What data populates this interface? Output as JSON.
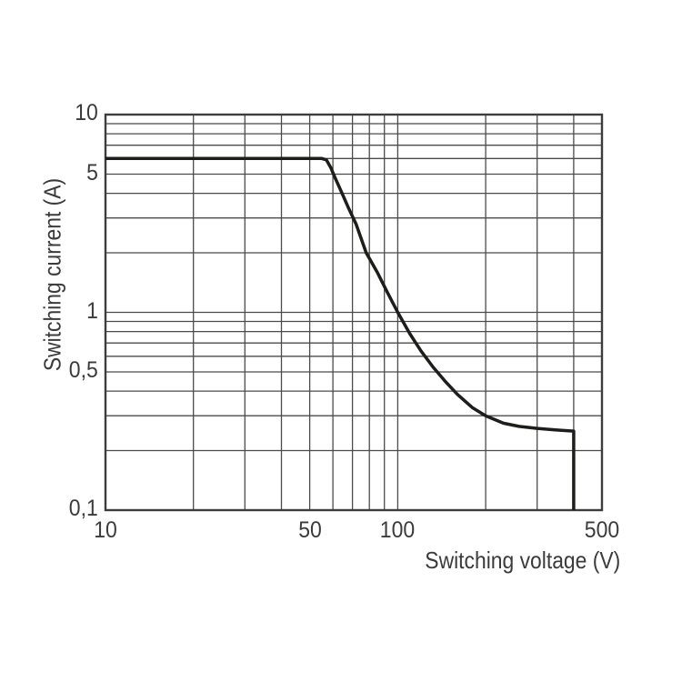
{
  "chart_data": {
    "type": "line",
    "title": "",
    "xlabel": "Switching voltage (V)",
    "ylabel": "Switching current (A)",
    "x_scale": "log",
    "y_scale": "log",
    "xlim": [
      10,
      500
    ],
    "ylim": [
      0.1,
      10
    ],
    "grid": "on",
    "legend": "none",
    "x_gridlines": [
      10,
      20,
      30,
      40,
      50,
      60,
      70,
      80,
      90,
      100,
      200,
      300,
      400,
      500
    ],
    "y_gridlines": [
      0.1,
      0.2,
      0.3,
      0.4,
      0.5,
      0.6,
      0.7,
      0.8,
      0.9,
      1,
      2,
      3,
      4,
      5,
      6,
      7,
      8,
      9,
      10
    ],
    "x_tick_labels": [
      {
        "value": 10,
        "label": "10"
      },
      {
        "value": 50,
        "label": "50"
      },
      {
        "value": 100,
        "label": "100"
      },
      {
        "value": 500,
        "label": "500"
      }
    ],
    "y_tick_labels": [
      {
        "value": 10,
        "label": "10"
      },
      {
        "value": 5,
        "label": "5"
      },
      {
        "value": 1,
        "label": "1"
      },
      {
        "value": 0.5,
        "label": "0,5"
      },
      {
        "value": 0.1,
        "label": "0,1"
      }
    ],
    "series": [
      {
        "name": "switching-capacity-limit-curve",
        "points": [
          [
            10,
            6
          ],
          [
            40,
            6
          ],
          [
            50,
            6
          ],
          [
            55,
            6
          ],
          [
            57,
            5.9
          ],
          [
            59,
            5.4
          ],
          [
            61,
            4.8
          ],
          [
            64,
            4.1
          ],
          [
            68,
            3.35
          ],
          [
            72,
            2.8
          ],
          [
            78,
            2.0
          ],
          [
            85,
            1.6
          ],
          [
            92,
            1.27
          ],
          [
            100,
            1.0
          ],
          [
            110,
            0.78
          ],
          [
            120,
            0.64
          ],
          [
            132,
            0.53
          ],
          [
            145,
            0.45
          ],
          [
            160,
            0.385
          ],
          [
            180,
            0.33
          ],
          [
            200,
            0.3
          ],
          [
            230,
            0.275
          ],
          [
            260,
            0.265
          ],
          [
            300,
            0.259
          ],
          [
            350,
            0.254
          ],
          [
            400,
            0.251
          ],
          [
            400,
            0.1
          ]
        ]
      }
    ],
    "colors": {
      "curve": "#1d1d1b",
      "grid": "#4b4b4b",
      "border": "#3d3d3d",
      "text": "#3b3b3b",
      "background": "#ffffff"
    }
  }
}
